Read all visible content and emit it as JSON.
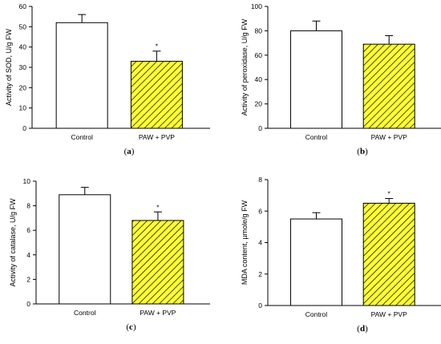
{
  "colors": {
    "control_fill": "#ffffff",
    "treatment_fill": "#ffff33",
    "hatch": "#000000",
    "axis": "#000000"
  },
  "chart_data": [
    {
      "type": "bar",
      "panel_label": "(a)",
      "ylabel": "Activity of SOD, U/g FW",
      "categories": [
        "Control",
        "PAW + PVP"
      ],
      "values": [
        52,
        33
      ],
      "errors": [
        4,
        5
      ],
      "significance": [
        "",
        "*"
      ],
      "ylim": [
        0,
        60
      ],
      "yticks": [
        "0",
        "10",
        "20",
        "30",
        "40",
        "50",
        "60"
      ],
      "grid": false
    },
    {
      "type": "bar",
      "panel_label": "(b)",
      "ylabel": "Activity of peroxidase, U/g FW",
      "categories": [
        "Control",
        "PAW + PVP"
      ],
      "values": [
        80,
        69
      ],
      "errors": [
        8,
        7
      ],
      "significance": [
        "",
        ""
      ],
      "ylim": [
        0,
        100
      ],
      "yticks": [
        "0",
        "20",
        "40",
        "60",
        "80",
        "100"
      ],
      "grid": false
    },
    {
      "type": "bar",
      "panel_label": "(c)",
      "ylabel": "Activity of catalase, U/g FW",
      "categories": [
        "Control",
        "PAW + PVP"
      ],
      "values": [
        8.9,
        6.8
      ],
      "errors": [
        0.6,
        0.7
      ],
      "significance": [
        "",
        "*"
      ],
      "ylim": [
        0,
        10
      ],
      "yticks": [
        "0",
        "2",
        "4",
        "6",
        "8",
        "10"
      ],
      "grid": false
    },
    {
      "type": "bar",
      "panel_label": "(d)",
      "ylabel": "MDA content, µmole/g FW",
      "categories": [
        "Control",
        "PAW + PVP"
      ],
      "values": [
        5.5,
        6.5
      ],
      "errors": [
        0.4,
        0.3
      ],
      "significance": [
        "",
        "*"
      ],
      "ylim": [
        0,
        8
      ],
      "yticks": [
        "0",
        "2",
        "4",
        "6",
        "8"
      ],
      "grid": false
    }
  ]
}
